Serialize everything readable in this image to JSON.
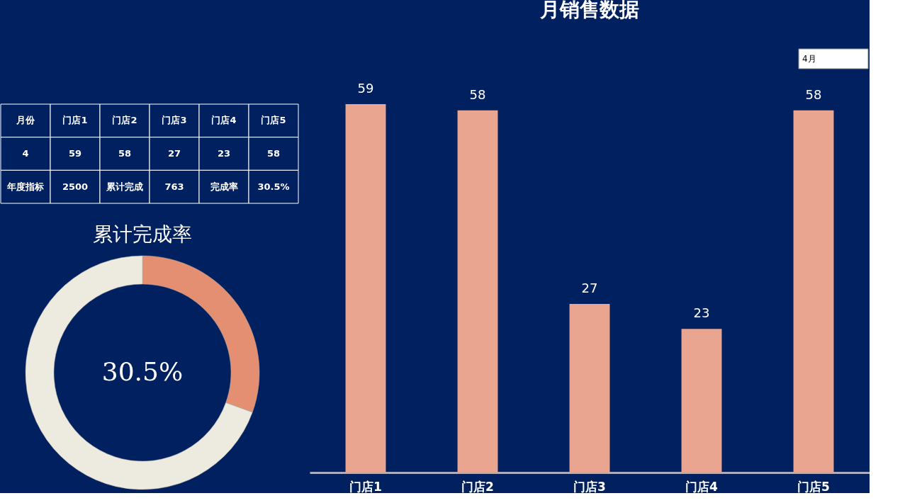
{
  "chart_data": [
    {
      "type": "other",
      "annotations": [
        "月份",
        "门店1",
        "门店2",
        "门店3",
        "门店4",
        "门店5",
        "4",
        "59",
        "58",
        "27",
        "23",
        "58",
        "年度指标",
        "2500",
        "累计完成",
        "763",
        "完成率",
        "30.5%"
      ]
    },
    {
      "type": "donut",
      "title": "累计完成率",
      "categories": [
        null,
        null
      ],
      "values": [
        30.5,
        69.5
      ],
      "colors": [
        "#e48f72",
        "#edeae0"
      ],
      "annotations": [
        "30.5%"
      ]
    },
    {
      "type": "bar",
      "title": "月销售数据",
      "categories": [
        "门店1",
        "门店2",
        "门店3",
        "门店4",
        "门店5"
      ],
      "values": [
        59,
        58,
        27,
        23,
        58
      ],
      "color": "#e9a58f",
      "data_labels": true,
      "annotations": [
        "4月"
      ]
    }
  ]
}
